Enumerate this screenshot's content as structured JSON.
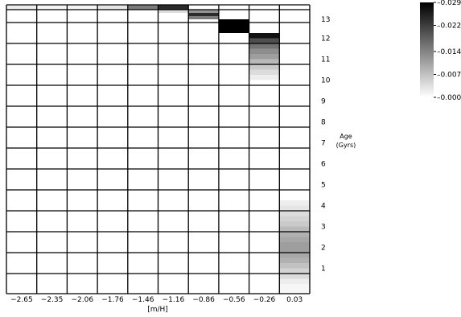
{
  "chart_data": {
    "type": "heatmap",
    "title": "",
    "xlabel": "[m/H]",
    "ylabel": "Age\n(Gyrs)",
    "x_tick_labels": [
      "-2.65",
      "-2.35",
      "-2.06",
      "-1.76",
      "-1.46",
      "-1.16",
      "-0.86",
      "-0.56",
      "-0.26",
      "0.03"
    ],
    "x_tick_display": [
      "−2.65",
      "−2.35",
      "−2.06",
      "−1.76",
      "−1.46",
      "−1.16",
      "−0.86",
      "−0.56",
      "−0.26",
      "0.03"
    ],
    "y_tick_labels": [
      "1",
      "2",
      "3",
      "4",
      "5",
      "6",
      "7",
      "8",
      "9",
      "10",
      "11",
      "12",
      "13"
    ],
    "y_tick_values": [
      1,
      2,
      3,
      4,
      5,
      6,
      7,
      8,
      9,
      10,
      11,
      12,
      13
    ],
    "ylim": [
      0,
      14
    ],
    "row_edges_gyr": [
      0,
      0.25,
      0.75,
      1.25,
      1.75,
      2.25,
      2.75,
      3.25,
      3.75,
      4.25,
      4.75,
      5.25,
      5.75,
      6.25,
      6.75,
      7.25,
      7.75,
      8.25,
      8.75,
      9.25,
      9.75,
      10.25,
      10.75,
      11.25,
      11.75,
      12.25,
      12.75,
      13.25,
      13.75,
      14.0
    ],
    "colorbar": {
      "range": [
        0.0,
        0.029
      ],
      "tick_labels": [
        "0.029",
        "0.022",
        "0.014",
        "0.007",
        "0.000"
      ],
      "tick_values": [
        0.029,
        0.022,
        0.014,
        0.007,
        0.0
      ]
    },
    "cells": [
      {
        "x": 0,
        "age_from": 13.75,
        "age_to": 14.0,
        "value": 0.002
      },
      {
        "x": 1,
        "age_from": 13.75,
        "age_to": 14.0,
        "value": 0.001
      },
      {
        "x": 2,
        "age_from": 13.75,
        "age_to": 14.0,
        "value": 0.001
      },
      {
        "x": 3,
        "age_from": 13.75,
        "age_to": 14.0,
        "value": 0.003
      },
      {
        "x": 4,
        "age_from": 13.75,
        "age_to": 14.0,
        "value": 0.015
      },
      {
        "x": 5,
        "age_from": 13.75,
        "age_to": 14.0,
        "value": 0.024
      },
      {
        "x": 5,
        "age_from": 13.5,
        "age_to": 13.75,
        "value": 0.004
      },
      {
        "x": 6,
        "age_from": 13.5,
        "age_to": 13.75,
        "value": 0.012
      },
      {
        "x": 6,
        "age_from": 13.25,
        "age_to": 13.5,
        "value": 0.024
      },
      {
        "x": 6,
        "age_from": 13.0,
        "age_to": 13.25,
        "value": 0.015
      },
      {
        "x": 7,
        "age_from": 12.75,
        "age_to": 13.0,
        "value": 0.029
      },
      {
        "x": 7,
        "age_from": 12.5,
        "age_to": 12.75,
        "value": 0.029
      },
      {
        "x": 7,
        "age_from": 12.25,
        "age_to": 12.5,
        "value": 0.029
      },
      {
        "x": 8,
        "age_from": 12.0,
        "age_to": 12.25,
        "value": 0.027
      },
      {
        "x": 8,
        "age_from": 11.75,
        "age_to": 12.0,
        "value": 0.02
      },
      {
        "x": 8,
        "age_from": 11.5,
        "age_to": 11.75,
        "value": 0.016
      },
      {
        "x": 8,
        "age_from": 11.25,
        "age_to": 11.5,
        "value": 0.013
      },
      {
        "x": 8,
        "age_from": 11.0,
        "age_to": 11.25,
        "value": 0.011
      },
      {
        "x": 8,
        "age_from": 10.75,
        "age_to": 11.0,
        "value": 0.008
      },
      {
        "x": 8,
        "age_from": 10.5,
        "age_to": 10.75,
        "value": 0.006
      },
      {
        "x": 8,
        "age_from": 10.25,
        "age_to": 10.5,
        "value": 0.004
      },
      {
        "x": 8,
        "age_from": 10.0,
        "age_to": 10.25,
        "value": 0.002
      },
      {
        "x": 9,
        "age_from": 4.0,
        "age_to": 4.25,
        "value": 0.002
      },
      {
        "x": 9,
        "age_from": 3.75,
        "age_to": 4.0,
        "value": 0.003
      },
      {
        "x": 9,
        "age_from": 3.5,
        "age_to": 3.75,
        "value": 0.004
      },
      {
        "x": 9,
        "age_from": 3.25,
        "age_to": 3.5,
        "value": 0.005
      },
      {
        "x": 9,
        "age_from": 3.0,
        "age_to": 3.25,
        "value": 0.006
      },
      {
        "x": 9,
        "age_from": 2.75,
        "age_to": 3.0,
        "value": 0.008
      },
      {
        "x": 9,
        "age_from": 2.5,
        "age_to": 2.75,
        "value": 0.009
      },
      {
        "x": 9,
        "age_from": 2.25,
        "age_to": 2.5,
        "value": 0.01
      },
      {
        "x": 9,
        "age_from": 2.0,
        "age_to": 2.25,
        "value": 0.011
      },
      {
        "x": 9,
        "age_from": 1.75,
        "age_to": 2.0,
        "value": 0.011
      },
      {
        "x": 9,
        "age_from": 1.5,
        "age_to": 1.75,
        "value": 0.01
      },
      {
        "x": 9,
        "age_from": 1.25,
        "age_to": 1.5,
        "value": 0.009
      },
      {
        "x": 9,
        "age_from": 1.0,
        "age_to": 1.25,
        "value": 0.007
      },
      {
        "x": 9,
        "age_from": 0.75,
        "age_to": 1.0,
        "value": 0.005
      },
      {
        "x": 9,
        "age_from": 0.5,
        "age_to": 0.75,
        "value": 0.004
      },
      {
        "x": 9,
        "age_from": 0.25,
        "age_to": 0.5,
        "value": 0.002
      },
      {
        "x": 9,
        "age_from": 0.0,
        "age_to": 0.25,
        "value": 0.001
      }
    ],
    "grid": true,
    "colorbar_placement": "top-right"
  }
}
